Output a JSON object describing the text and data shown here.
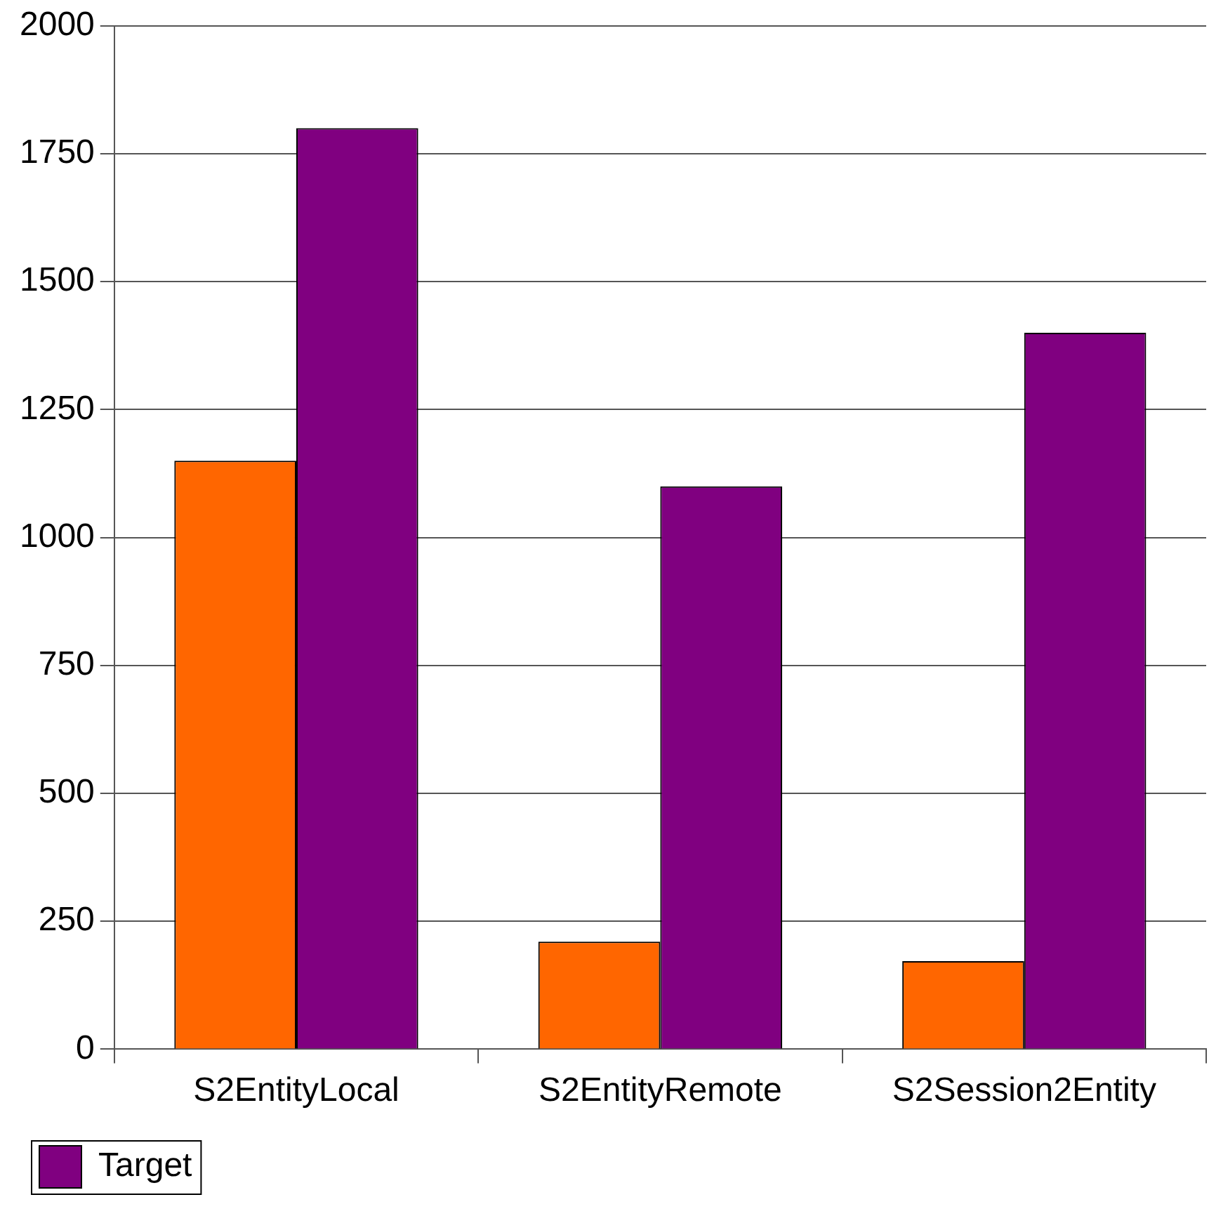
{
  "chart_data": {
    "type": "bar",
    "categories": [
      "S2EntityLocal",
      "S2EntityRemote",
      "S2Session2Entity"
    ],
    "series": [
      {
        "color": "#ff6600",
        "values": [
          1150,
          210,
          172
        ]
      },
      {
        "name": "Target",
        "color": "#800080",
        "values": [
          1800,
          1100,
          1400
        ]
      }
    ],
    "ylim": [
      0,
      2000
    ],
    "yticks": [
      0,
      250,
      500,
      750,
      1000,
      1250,
      1500,
      1750,
      2000
    ],
    "grid": "y",
    "legend": "bottom left"
  }
}
